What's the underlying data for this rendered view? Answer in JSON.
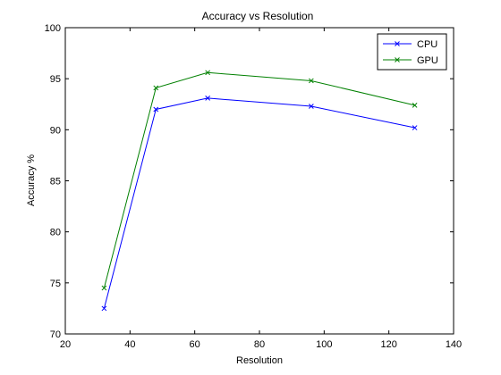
{
  "chart_data": {
    "type": "line",
    "title": "Accuracy vs Resolution",
    "xlabel": "Resolution",
    "ylabel": "Accuracy %",
    "xlim": [
      20,
      140
    ],
    "ylim": [
      70,
      100
    ],
    "xticks": [
      "20",
      "40",
      "60",
      "80",
      "100",
      "120",
      "140"
    ],
    "yticks": [
      "70",
      "75",
      "80",
      "85",
      "90",
      "95",
      "100"
    ],
    "x": [
      32,
      48,
      64,
      96,
      128
    ],
    "series": [
      {
        "name": "CPU",
        "color": "#0000ff",
        "marker": "x",
        "values": [
          72.5,
          92.0,
          93.1,
          92.3,
          90.2
        ]
      },
      {
        "name": "GPU",
        "color": "#008000",
        "marker": "x",
        "values": [
          74.5,
          94.1,
          95.6,
          94.8,
          92.4
        ]
      }
    ],
    "grid": false,
    "legend_position": "top-right"
  }
}
